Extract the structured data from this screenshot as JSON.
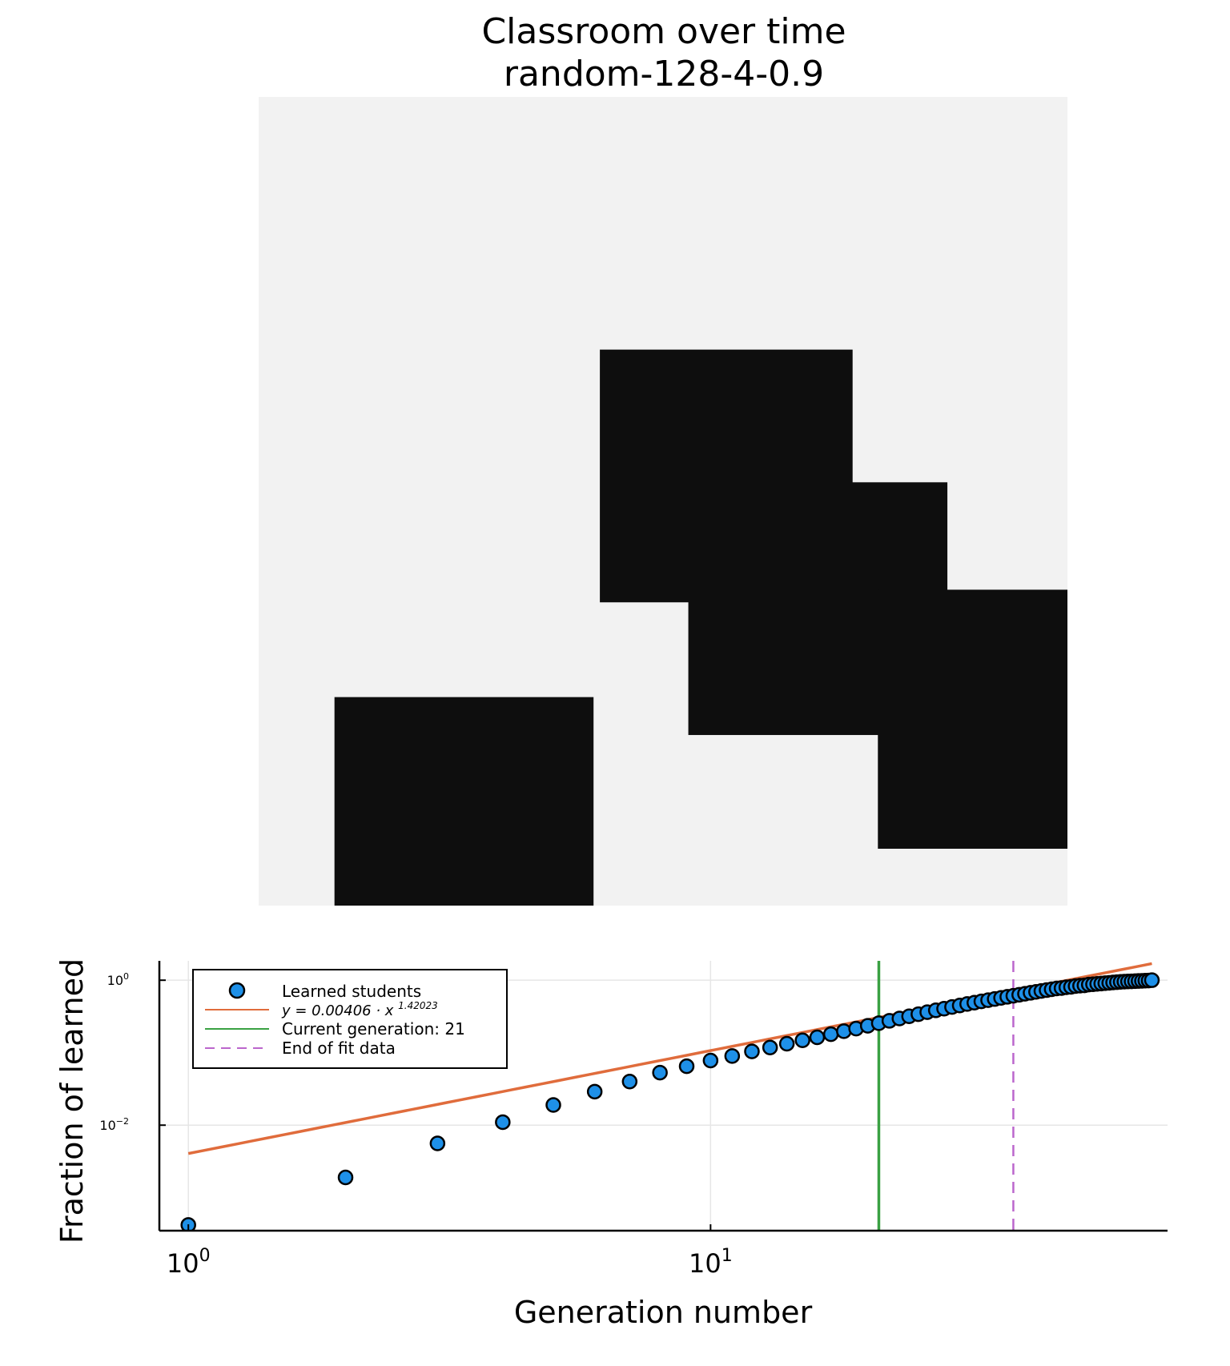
{
  "title": {
    "line1": "Classroom over time",
    "line2": "random-128-4-0.9"
  },
  "colors": {
    "background": "#ffffff",
    "grid_light": "#f2f2f2",
    "grid_dark": "#0e0e0e",
    "points": "#1e90e8",
    "fit": "#e06c3c",
    "current": "#3aa143",
    "end_fit": "#bb66cc"
  },
  "grid": {
    "size": 128,
    "dark_regions": [
      {
        "col_from": 54,
        "col_to": 94,
        "row_from": 40,
        "row_to": 80
      },
      {
        "col_from": 68,
        "col_to": 109,
        "row_from": 61,
        "row_to": 101
      },
      {
        "col_from": 98,
        "col_to": 128,
        "row_from": 78,
        "row_to": 119
      },
      {
        "col_from": 12,
        "col_to": 53,
        "row_from": 95,
        "row_to": 128
      }
    ]
  },
  "chart_data": {
    "type": "scatter",
    "xlabel": "Generation number",
    "ylabel": "Fraction of learned",
    "xscale": "log",
    "yscale": "log",
    "xlim": [
      0.88,
      75
    ],
    "ylim": [
      0.00035,
      1.85
    ],
    "x_ticks": [
      {
        "value": 1,
        "base": "10",
        "exp": "0"
      },
      {
        "value": 10,
        "base": "10",
        "exp": "1"
      }
    ],
    "y_ticks": [
      {
        "value": 0.01,
        "base": "10",
        "exp": "−2"
      },
      {
        "value": 1,
        "base": "10",
        "exp": "0"
      }
    ],
    "grid": true,
    "legend_position": "top-left",
    "legend": {
      "learned": "Learned students",
      "fit": "y = 0.00406 · x^1.42023",
      "current": "Current generation: 21",
      "end_fit": "End of fit data"
    },
    "fit": {
      "coef": 0.00406,
      "exponent": 1.42023
    },
    "current_generation": 21,
    "end_of_fit": 38,
    "series": [
      {
        "name": "Learned students",
        "x": [
          1,
          2,
          3,
          4,
          5,
          6,
          7,
          8,
          9,
          10,
          11,
          12,
          13,
          14,
          15,
          16,
          17,
          18,
          19,
          20,
          21,
          22,
          23,
          24,
          25,
          26,
          27,
          28,
          29,
          30,
          31,
          32,
          33,
          34,
          35,
          36,
          37,
          38,
          39,
          40,
          41,
          42,
          43,
          44,
          45,
          46,
          47,
          48,
          49,
          50,
          51,
          52,
          53,
          54,
          55,
          56,
          57,
          58,
          59,
          60,
          61,
          62,
          63,
          64,
          65,
          66,
          67,
          68,
          69,
          70
        ],
        "y": [
          0.00042,
          0.0019,
          0.0056,
          0.011,
          0.019,
          0.029,
          0.04,
          0.053,
          0.065,
          0.078,
          0.09,
          0.104,
          0.118,
          0.133,
          0.148,
          0.163,
          0.18,
          0.198,
          0.215,
          0.235,
          0.255,
          0.275,
          0.296,
          0.318,
          0.34,
          0.362,
          0.384,
          0.405,
          0.427,
          0.448,
          0.47,
          0.49,
          0.51,
          0.53,
          0.55,
          0.57,
          0.59,
          0.61,
          0.63,
          0.65,
          0.67,
          0.69,
          0.71,
          0.73,
          0.75,
          0.77,
          0.78,
          0.8,
          0.81,
          0.83,
          0.84,
          0.85,
          0.87,
          0.88,
          0.89,
          0.9,
          0.91,
          0.92,
          0.93,
          0.94,
          0.95,
          0.955,
          0.96,
          0.965,
          0.97,
          0.975,
          0.98,
          0.985,
          0.99,
          1.0
        ]
      }
    ]
  }
}
